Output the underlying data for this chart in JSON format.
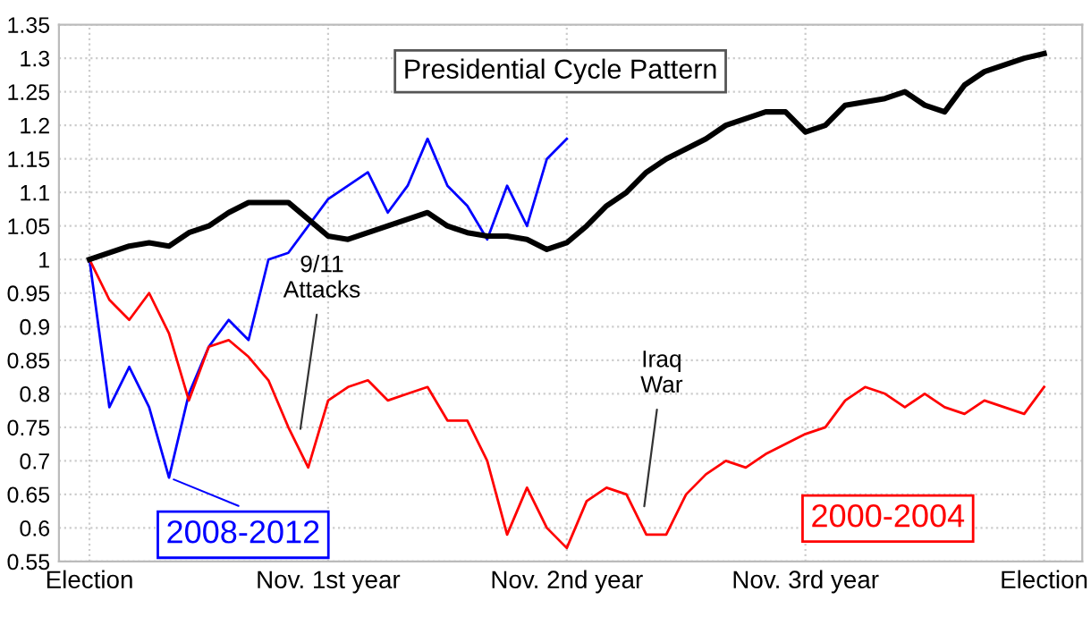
{
  "chart_data": {
    "type": "line",
    "title": "Presidential Cycle Pattern",
    "categories": [
      "Election",
      null,
      null,
      null,
      null,
      null,
      null,
      null,
      null,
      null,
      null,
      null,
      "Nov. 1st year",
      null,
      null,
      null,
      null,
      null,
      null,
      null,
      null,
      null,
      null,
      null,
      "Nov. 2nd year",
      null,
      null,
      null,
      null,
      null,
      null,
      null,
      null,
      null,
      null,
      null,
      "Nov. 3rd year",
      null,
      null,
      null,
      null,
      null,
      null,
      null,
      null,
      null,
      null,
      null,
      "Election"
    ],
    "ylim": [
      0.55,
      1.35
    ],
    "yticks": [
      0.55,
      0.6,
      0.65,
      0.7,
      0.75,
      0.8,
      0.85,
      0.9,
      0.95,
      1,
      1.05,
      1.1,
      1.15,
      1.2,
      1.25,
      1.3,
      1.35
    ],
    "grid": true,
    "legend": "bottom",
    "marker": "none",
    "line_style": "solid",
    "series": [
      {
        "name": "2008-2012",
        "color": "#0000ff",
        "values": [
          1.0,
          0.78,
          0.84,
          0.78,
          0.675,
          0.8,
          0.87,
          0.91,
          0.88,
          1.0,
          1.01,
          1.05,
          1.09,
          1.11,
          1.13,
          1.07,
          1.11,
          1.18,
          1.11,
          1.08,
          1.03,
          1.11,
          1.05,
          1.15,
          1.18,
          null,
          null,
          null,
          null,
          null,
          null,
          null,
          null,
          null,
          null,
          null,
          null,
          null,
          null,
          null,
          null,
          null,
          null,
          null,
          null,
          null,
          null,
          null,
          null
        ]
      },
      {
        "name": "2000-2004",
        "color": "#ff0000",
        "values": [
          1.0,
          0.94,
          0.91,
          0.95,
          0.89,
          0.79,
          0.87,
          0.88,
          0.855,
          0.82,
          0.75,
          0.69,
          0.79,
          0.81,
          0.82,
          0.79,
          0.8,
          0.81,
          0.76,
          0.76,
          0.7,
          0.59,
          0.66,
          0.6,
          0.57,
          0.64,
          0.66,
          0.65,
          0.59,
          0.59,
          0.65,
          0.68,
          0.7,
          0.69,
          0.71,
          0.725,
          0.74,
          0.75,
          0.79,
          0.81,
          0.8,
          0.78,
          0.8,
          0.78,
          0.77,
          0.79,
          0.78,
          0.77,
          0.81
        ]
      },
      {
        "color": "#000000",
        "values": [
          1.0,
          1.01,
          1.02,
          1.025,
          1.02,
          1.04,
          1.05,
          1.07,
          1.085,
          1.085,
          1.085,
          1.06,
          1.035,
          1.03,
          1.04,
          1.05,
          1.06,
          1.07,
          1.05,
          1.04,
          1.035,
          1.035,
          1.03,
          1.015,
          1.025,
          1.05,
          1.08,
          1.1,
          1.13,
          1.15,
          1.165,
          1.18,
          1.2,
          1.21,
          1.22,
          1.22,
          1.19,
          1.2,
          1.23,
          1.235,
          1.24,
          1.25,
          1.23,
          1.22,
          1.26,
          1.28,
          1.29,
          1.3,
          1.307
        ]
      }
    ],
    "annotations": [
      "9/11\nAttacks",
      "Iraq\nWar"
    ]
  }
}
